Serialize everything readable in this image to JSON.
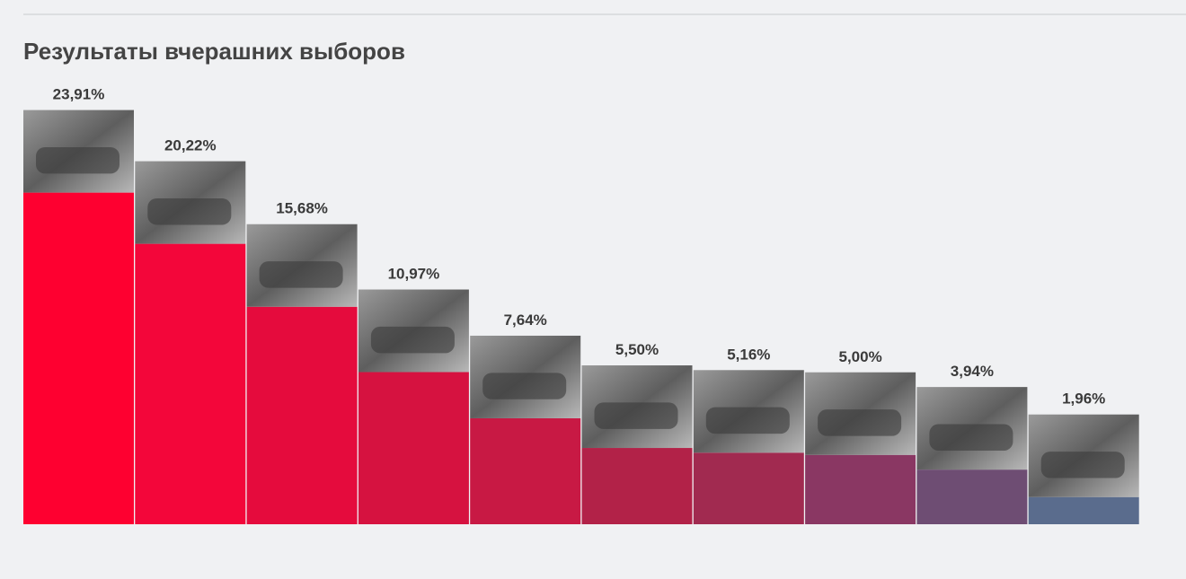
{
  "chart_data": {
    "type": "bar",
    "title": "Результаты вчерашних выборов",
    "values": [
      23.91,
      20.22,
      15.68,
      10.97,
      7.64,
      5.5,
      5.16,
      5.0,
      3.94,
      1.96
    ],
    "value_labels": [
      "23,91%",
      "20,22%",
      "15,68%",
      "10,97%",
      "7,64%",
      "5,50%",
      "5,16%",
      "5,00%",
      "3,94%",
      "1,96%"
    ],
    "colors": [
      "#fe0030",
      "#f3063a",
      "#e50b3d",
      "#d61240",
      "#c81944",
      "#b22248",
      "#a12a50",
      "#8a3763",
      "#6e4d73",
      "#5a6c8d"
    ]
  }
}
